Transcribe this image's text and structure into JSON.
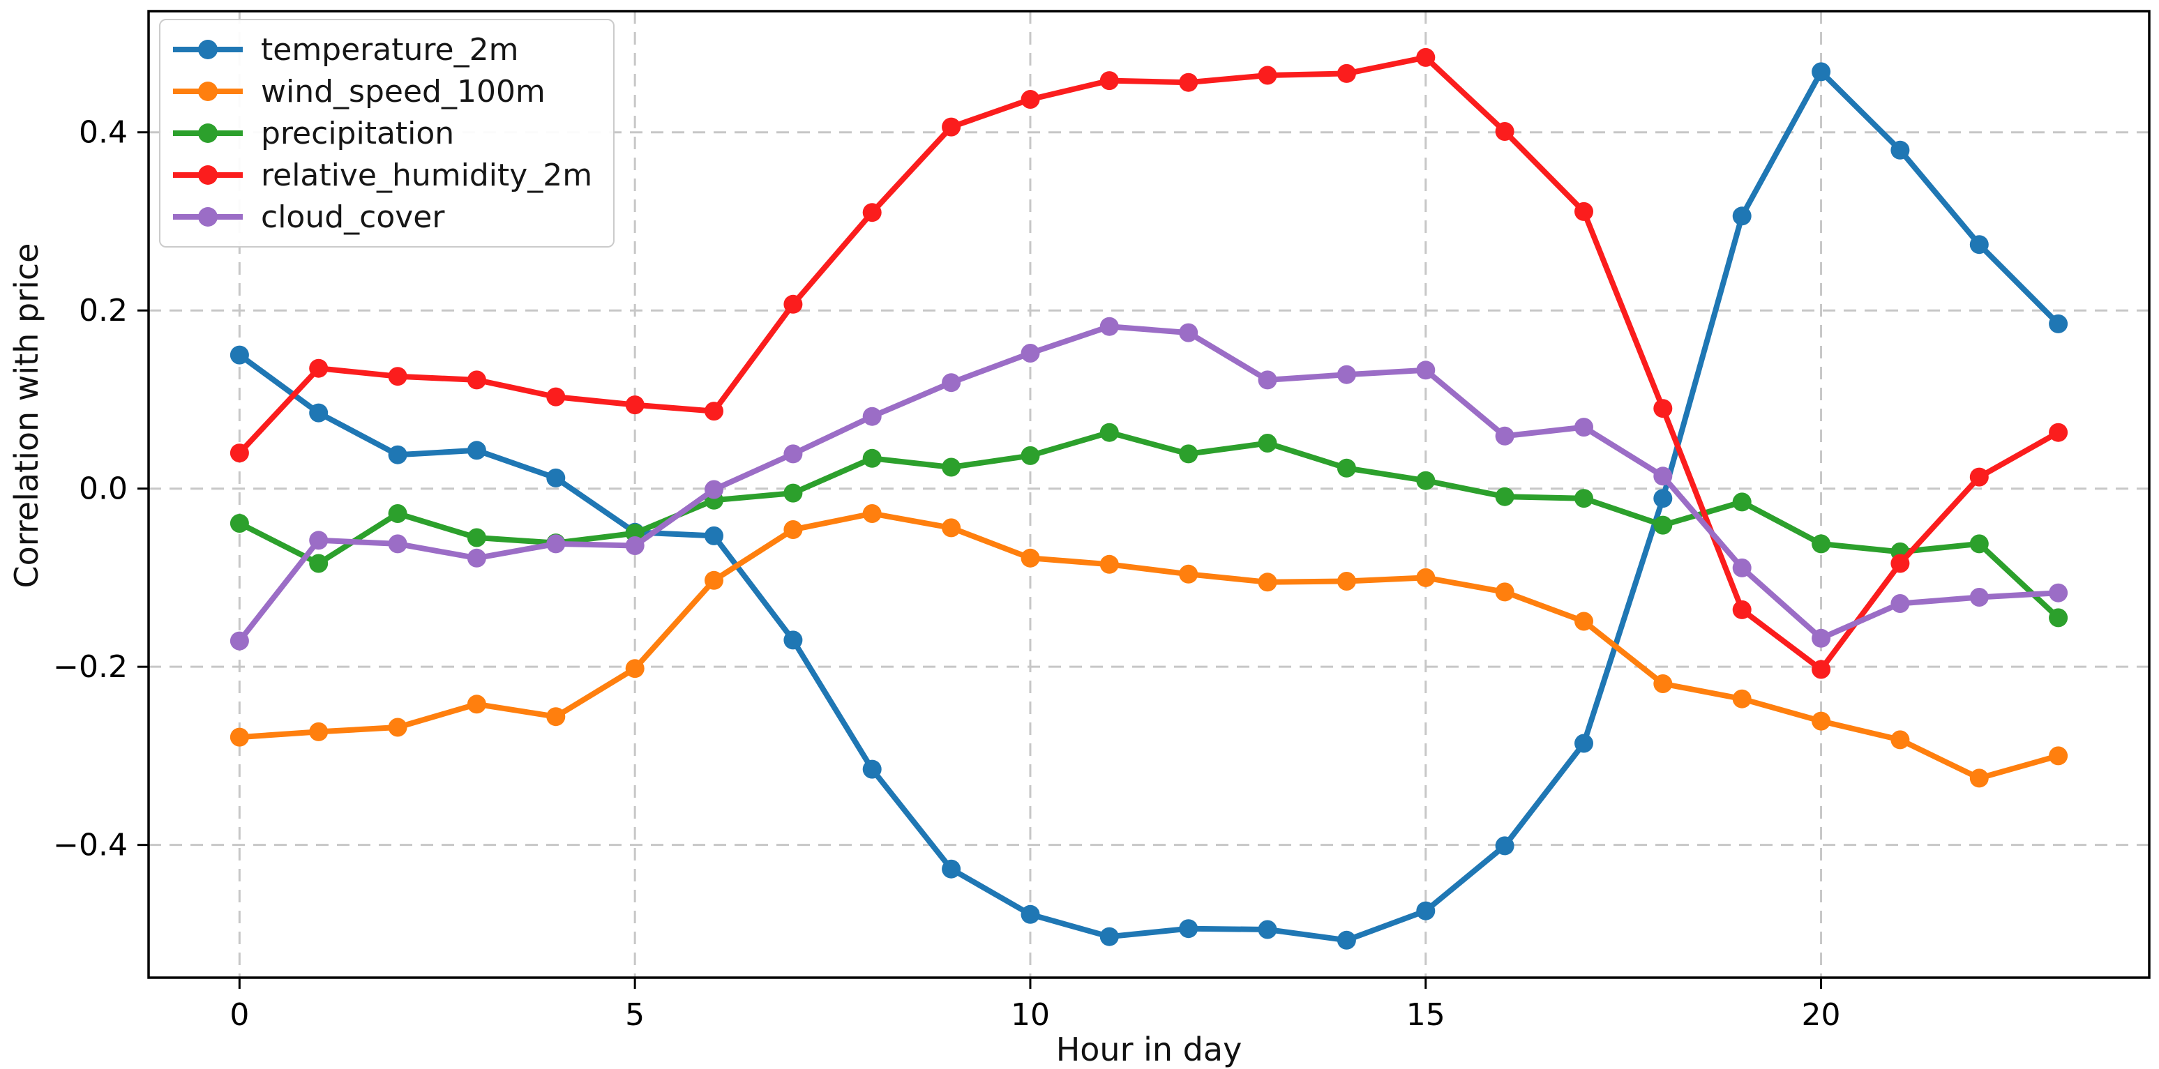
{
  "figure": {
    "background": "#ffffff",
    "axis_color": "#000000",
    "grid_color": "#c7c7c7",
    "legend_border_color": "#cbcbcb"
  },
  "chart_data": {
    "type": "line",
    "title": "",
    "xlabel": "Hour in day",
    "ylabel": "Correlation with price",
    "x": [
      0,
      1,
      2,
      3,
      4,
      5,
      6,
      7,
      8,
      9,
      10,
      11,
      12,
      13,
      14,
      15,
      16,
      17,
      18,
      19,
      20,
      21,
      22,
      23
    ],
    "series": [
      {
        "name": "temperature_2m",
        "color": "#1f77b4",
        "values": [
          0.15,
          0.085,
          0.038,
          0.043,
          0.012,
          -0.049,
          -0.053,
          -0.17,
          -0.315,
          -0.427,
          -0.478,
          -0.503,
          -0.494,
          -0.495,
          -0.507,
          -0.474,
          -0.401,
          -0.286,
          -0.011,
          0.306,
          0.468,
          0.38,
          0.274,
          0.185
        ]
      },
      {
        "name": "wind_speed_100m",
        "color": "#ff7f0e",
        "values": [
          -0.279,
          -0.273,
          -0.268,
          -0.242,
          -0.256,
          -0.202,
          -0.103,
          -0.046,
          -0.028,
          -0.044,
          -0.078,
          -0.085,
          -0.096,
          -0.105,
          -0.104,
          -0.1,
          -0.116,
          -0.149,
          -0.219,
          -0.236,
          -0.261,
          -0.282,
          -0.325,
          -0.3
        ]
      },
      {
        "name": "precipitation",
        "color": "#2ca02c",
        "values": [
          -0.039,
          -0.084,
          -0.028,
          -0.055,
          -0.061,
          -0.05,
          -0.013,
          -0.005,
          0.034,
          0.024,
          0.037,
          0.063,
          0.039,
          0.051,
          0.023,
          0.009,
          -0.009,
          -0.011,
          -0.041,
          -0.015,
          -0.062,
          -0.071,
          -0.062,
          -0.145
        ]
      },
      {
        "name": "relative_humidity_2m",
        "color": "#fb1d1d",
        "values": [
          0.04,
          0.135,
          0.126,
          0.122,
          0.103,
          0.094,
          0.087,
          0.207,
          0.31,
          0.406,
          0.437,
          0.458,
          0.456,
          0.464,
          0.466,
          0.484,
          0.401,
          0.311,
          0.09,
          -0.136,
          -0.203,
          -0.084,
          0.013,
          0.063
        ]
      },
      {
        "name": "cloud_cover",
        "color": "#9b6dc6",
        "values": [
          -0.171,
          -0.058,
          -0.062,
          -0.078,
          -0.062,
          -0.064,
          -0.001,
          0.039,
          0.081,
          0.119,
          0.152,
          0.182,
          0.175,
          0.122,
          0.128,
          0.133,
          0.059,
          0.069,
          0.014,
          -0.089,
          -0.168,
          -0.129,
          -0.122,
          -0.117
        ]
      }
    ],
    "xlim": [
      -1.15,
      24.15
    ],
    "ylim": [
      -0.549,
      0.536
    ],
    "grid": true,
    "grid_style": "dashed",
    "legend_position": "upper left",
    "yticks": {
      "labels": [
        "0.4",
        "0.2",
        "0.0",
        "−0.2",
        "−0.4"
      ],
      "values": [
        0.4,
        0.2,
        0.0,
        -0.2,
        -0.4
      ]
    },
    "xticks": {
      "labels": [
        "0",
        "5",
        "10",
        "15",
        "20"
      ],
      "values": [
        0,
        5,
        10,
        15,
        20
      ]
    }
  }
}
